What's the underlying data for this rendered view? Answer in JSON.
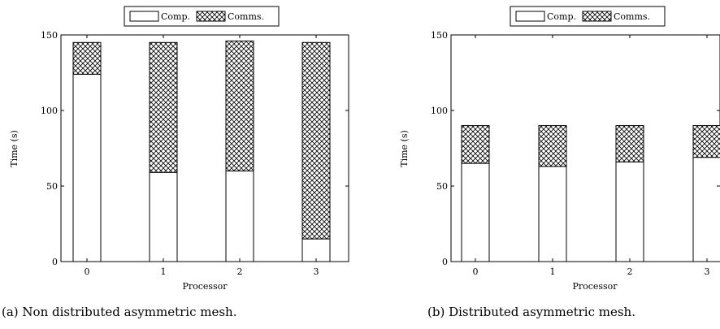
{
  "chart_data": [
    {
      "type": "bar",
      "stacked": true,
      "caption": "(a) Non distributed asymmetric mesh.",
      "xlabel": "Processor",
      "ylabel": "Time (s)",
      "categories": [
        "0",
        "1",
        "2",
        "3"
      ],
      "ylim": [
        0,
        150
      ],
      "yticks": [
        "0",
        "50",
        "100",
        "150"
      ],
      "legend": {
        "placement": "top-center"
      },
      "series": [
        {
          "name": "Comp.",
          "pattern": "solid-white",
          "values": [
            124,
            59,
            60,
            15
          ]
        },
        {
          "name": "Comms.",
          "pattern": "crosshatch",
          "values": [
            21,
            86,
            86,
            130
          ]
        }
      ]
    },
    {
      "type": "bar",
      "stacked": true,
      "caption": "(b) Distributed asymmetric mesh.",
      "xlabel": "Processor",
      "ylabel": "Time (s)",
      "categories": [
        "0",
        "1",
        "2",
        "3"
      ],
      "ylim": [
        0,
        150
      ],
      "yticks": [
        "0",
        "50",
        "100",
        "150"
      ],
      "legend": {
        "placement": "top-center"
      },
      "series": [
        {
          "name": "Comp.",
          "pattern": "solid-white",
          "values": [
            65,
            63,
            66,
            69
          ]
        },
        {
          "name": "Comms.",
          "pattern": "crosshatch",
          "values": [
            25,
            27,
            24,
            21
          ]
        }
      ]
    }
  ]
}
